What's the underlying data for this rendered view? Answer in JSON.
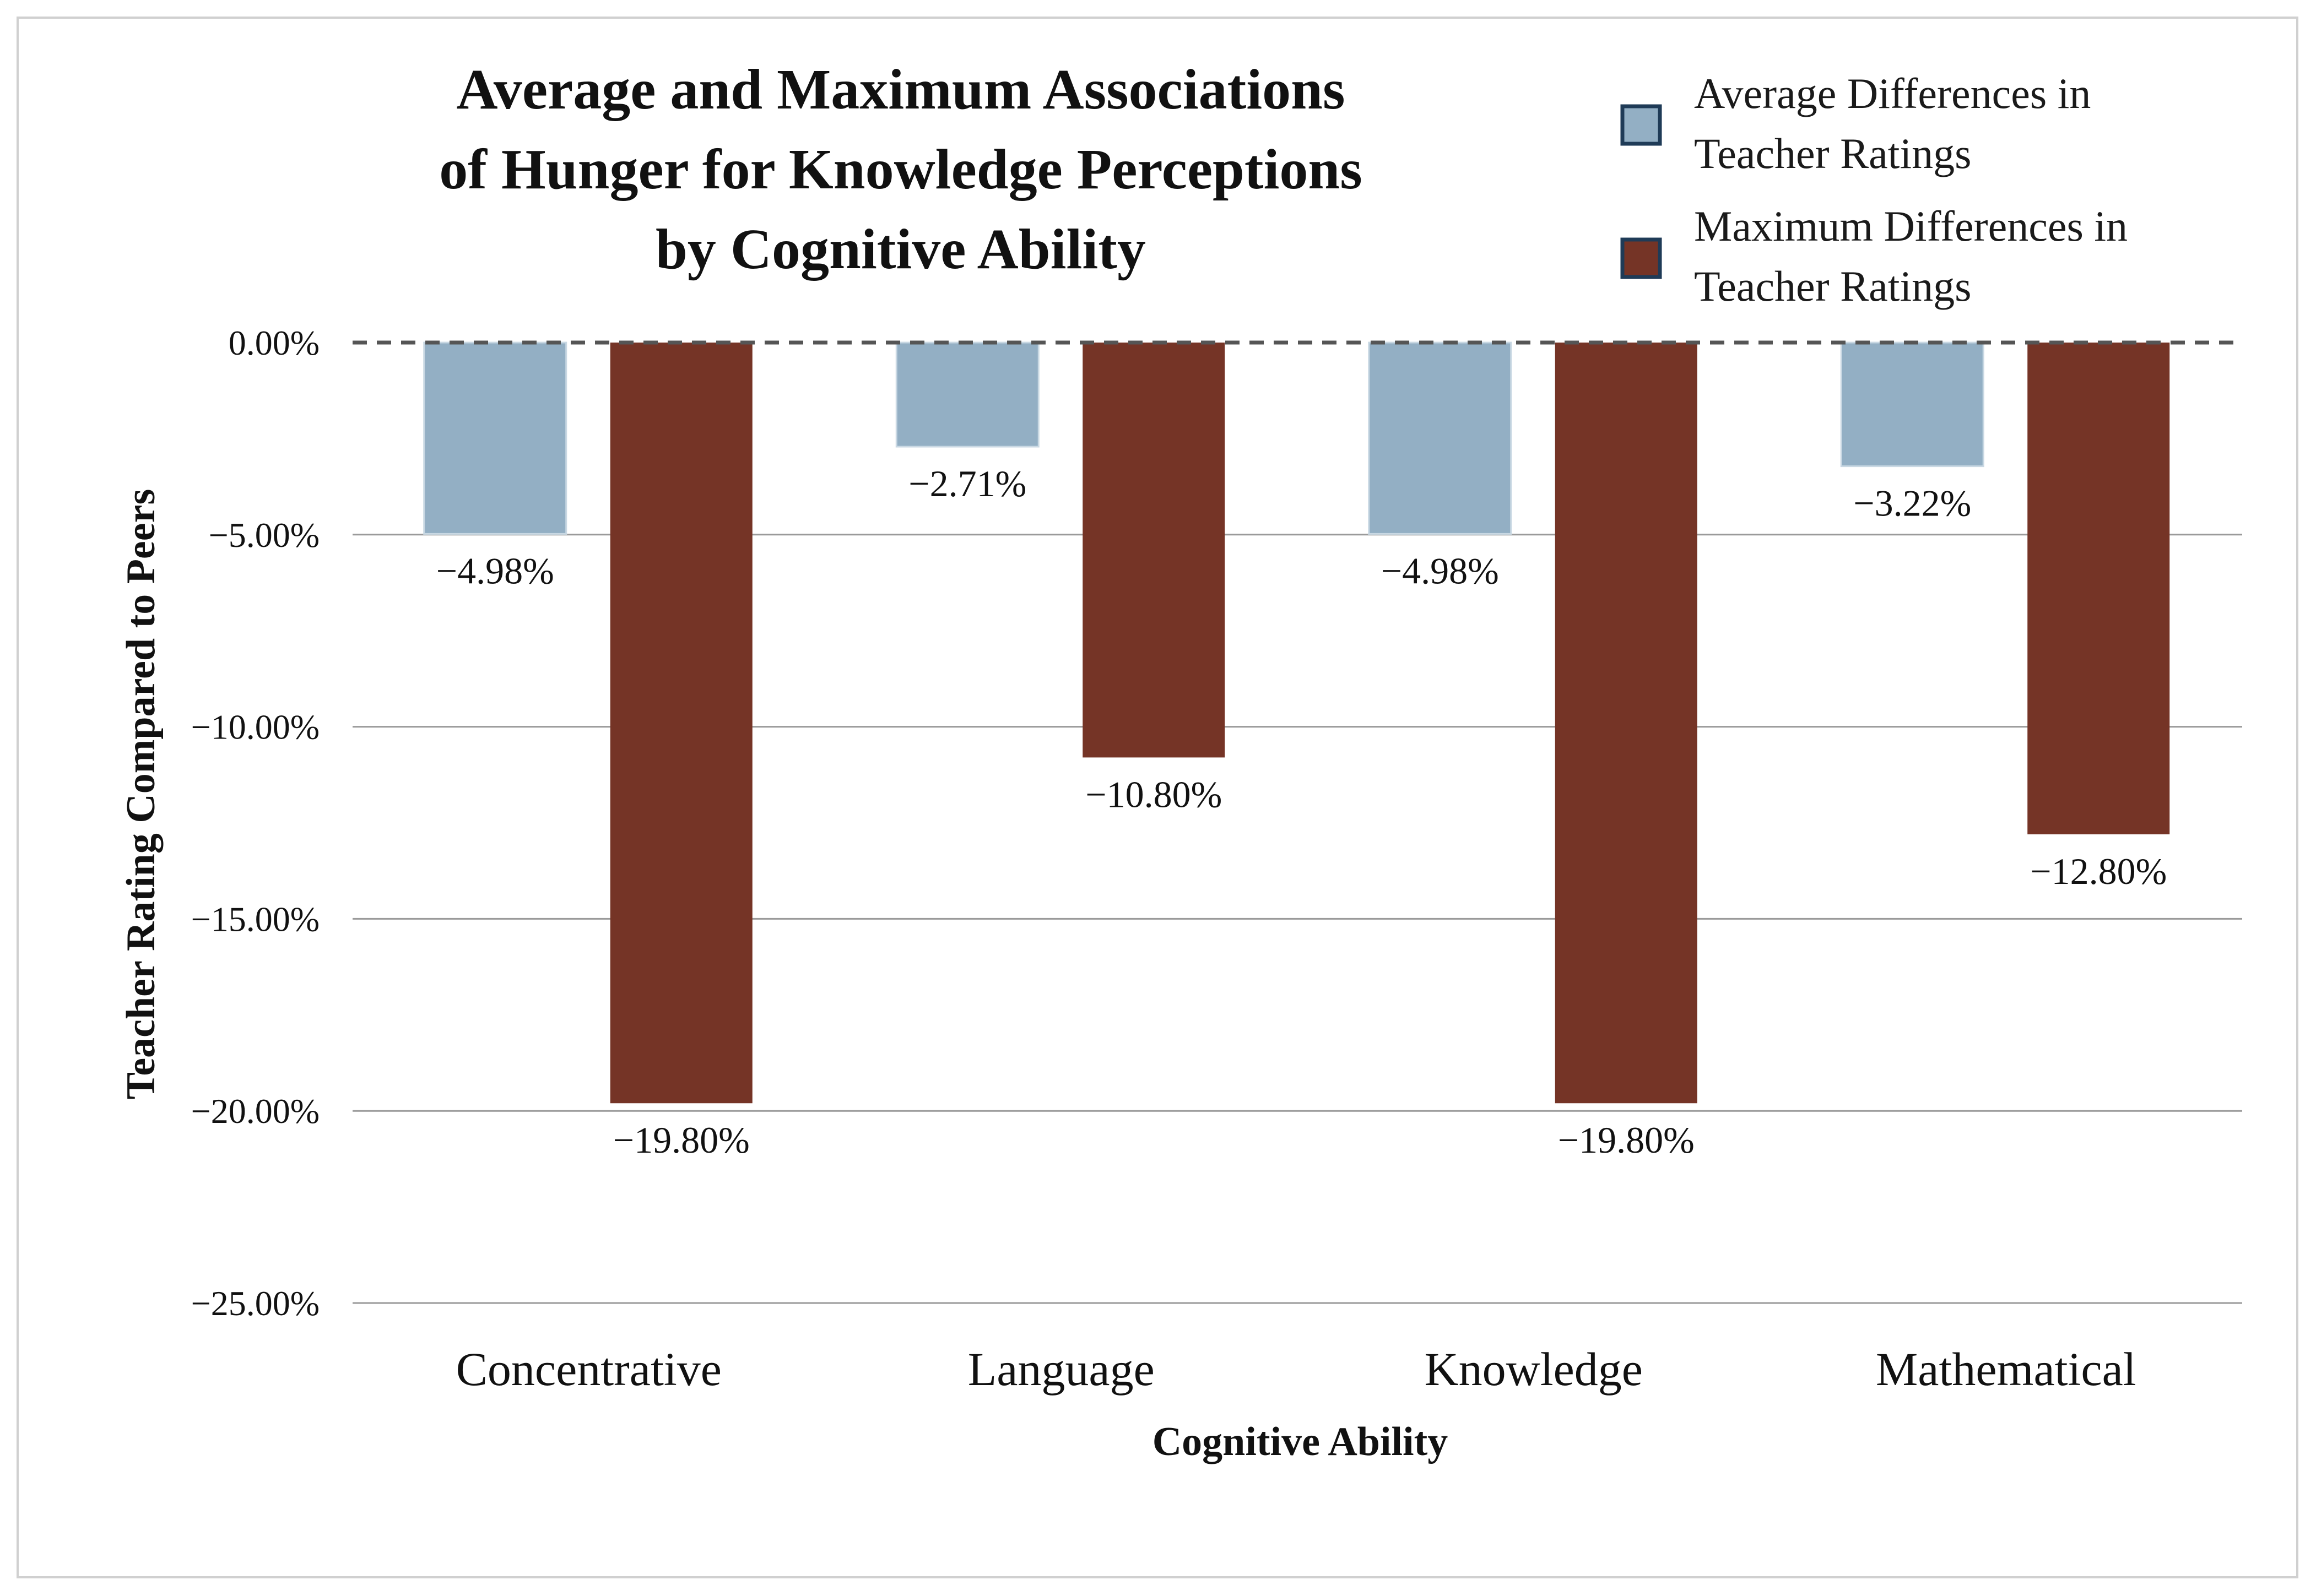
{
  "chart_data": {
    "type": "bar",
    "title_lines": [
      "Average and Maximum Associations",
      "of Hunger for Knowledge Perceptions",
      "by Cognitive Ability"
    ],
    "xlabel": "Cognitive Ability",
    "ylabel": "Teacher Rating Compared to Peers",
    "categories": [
      "Concentrative",
      "Language",
      "Knowledge",
      "Mathematical"
    ],
    "ylim": [
      -25,
      0
    ],
    "yticks": [
      0,
      -5,
      -10,
      -15,
      -20,
      -25
    ],
    "ytick_labels": [
      "0.00%",
      "−5.00%",
      "−10.00%",
      "−15.00%",
      "−20.00%",
      "−25.00%"
    ],
    "grid": true,
    "zero_line": "dashed",
    "legend_position": "top-right",
    "series": [
      {
        "name": "Average Differences in Teacher Ratings",
        "legend_lines": [
          "Average Differences in",
          "Teacher Ratings"
        ],
        "color": "#93afc4",
        "values": [
          -4.98,
          -2.71,
          -4.98,
          -3.22
        ],
        "data_labels": [
          "−4.98%",
          "−2.71%",
          "−4.98%",
          "−3.22%"
        ]
      },
      {
        "name": "Maximum Differences in Teacher Ratings",
        "legend_lines": [
          "Maximum Differences in",
          "Teacher Ratings"
        ],
        "color": "#753426",
        "values": [
          -19.8,
          -10.8,
          -19.8,
          -12.8
        ],
        "data_labels": [
          "−19.80%",
          "−10.80%",
          "−19.80%",
          "−12.80%"
        ]
      }
    ]
  }
}
